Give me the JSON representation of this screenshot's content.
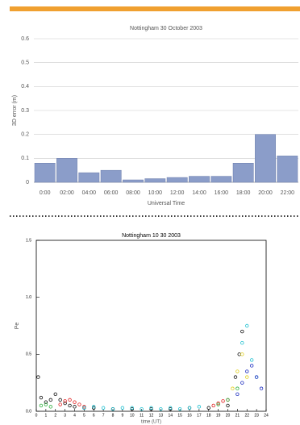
{
  "chart_data": [
    {
      "type": "bar",
      "title": "Nottingham 30 October 2003",
      "y_label": "3D error (m)",
      "x_label": "Universal Time",
      "categories": [
        "0:00",
        "02:00",
        "04:00",
        "06:00",
        "08:00",
        "10:00",
        "12:00",
        "14:00",
        "16:00",
        "18:00",
        "20:00",
        "22:00"
      ],
      "values": [
        0.08,
        0.1,
        0.04,
        0.05,
        0.01,
        0.015,
        0.02,
        0.025,
        0.025,
        0.08,
        0.2,
        0.11
      ],
      "color": "#8b9dc9",
      "ylim": [
        0,
        0.6
      ],
      "yticks": [
        0,
        0.1,
        0.2,
        0.3,
        0.4,
        0.5,
        0.6
      ],
      "grid": true
    },
    {
      "type": "scatter",
      "title": "Nottingham 10 30 2003",
      "y_label": "Pe",
      "x_label": "time (UT)",
      "xlim": [
        0,
        24
      ],
      "xticks": [
        0,
        1,
        2,
        3,
        4,
        5,
        6,
        7,
        8,
        9,
        10,
        11,
        12,
        13,
        14,
        15,
        16,
        17,
        18,
        19,
        20,
        21,
        22,
        23,
        24
      ],
      "ylim": [
        0,
        1.5
      ],
      "yticks": [
        {
          "value": 0,
          "label": "0.0"
        },
        {
          "value": 0.5,
          "label": "0.5"
        },
        {
          "value": 1,
          "label": "1.0"
        },
        {
          "value": 1.5,
          "label": "1.5"
        }
      ],
      "grid": false,
      "series": [
        {
          "color": "#111111",
          "x": [
            0.2,
            0.5,
            1,
            1.5,
            2,
            2.5,
            3,
            3.5,
            4,
            5,
            6,
            8,
            10,
            12,
            14,
            16,
            18,
            20,
            20.8,
            21.2,
            21.5
          ],
          "values": [
            0.3,
            0.12,
            0.08,
            0.1,
            0.15,
            0.1,
            0.07,
            0.05,
            0.04,
            0.03,
            0.03,
            0.02,
            0.02,
            0.02,
            0.02,
            0.03,
            0.03,
            0.05,
            0.3,
            0.5,
            0.7
          ]
        },
        {
          "color": "#e02020",
          "x": [
            2.5,
            3,
            3.5,
            4,
            4.5,
            5,
            18.5,
            19,
            19.5,
            20
          ],
          "values": [
            0.06,
            0.09,
            0.1,
            0.08,
            0.06,
            0.04,
            0.05,
            0.07,
            0.09,
            0.1
          ]
        },
        {
          "color": "#20c0d0",
          "x": [
            5,
            6,
            7,
            8,
            9,
            10,
            11,
            12,
            13,
            14,
            15,
            16,
            17,
            21.5,
            22,
            22.5,
            23
          ],
          "values": [
            0.03,
            0.04,
            0.03,
            0.02,
            0.03,
            0.03,
            0.02,
            0.03,
            0.02,
            0.03,
            0.02,
            0.03,
            0.04,
            0.6,
            0.75,
            0.45,
            0.3
          ]
        },
        {
          "color": "#2030c0",
          "x": [
            21,
            21.5,
            22,
            22.5,
            23,
            23.5
          ],
          "values": [
            0.15,
            0.25,
            0.35,
            0.4,
            0.3,
            0.2
          ]
        },
        {
          "color": "#30b040",
          "x": [
            0.5,
            1,
            1.5,
            19,
            20,
            21
          ],
          "values": [
            0.05,
            0.06,
            0.04,
            0.06,
            0.1,
            0.2
          ]
        },
        {
          "color": "#e0d020",
          "x": [
            20.5,
            21,
            21.5,
            22
          ],
          "values": [
            0.2,
            0.35,
            0.5,
            0.3
          ]
        }
      ]
    }
  ]
}
